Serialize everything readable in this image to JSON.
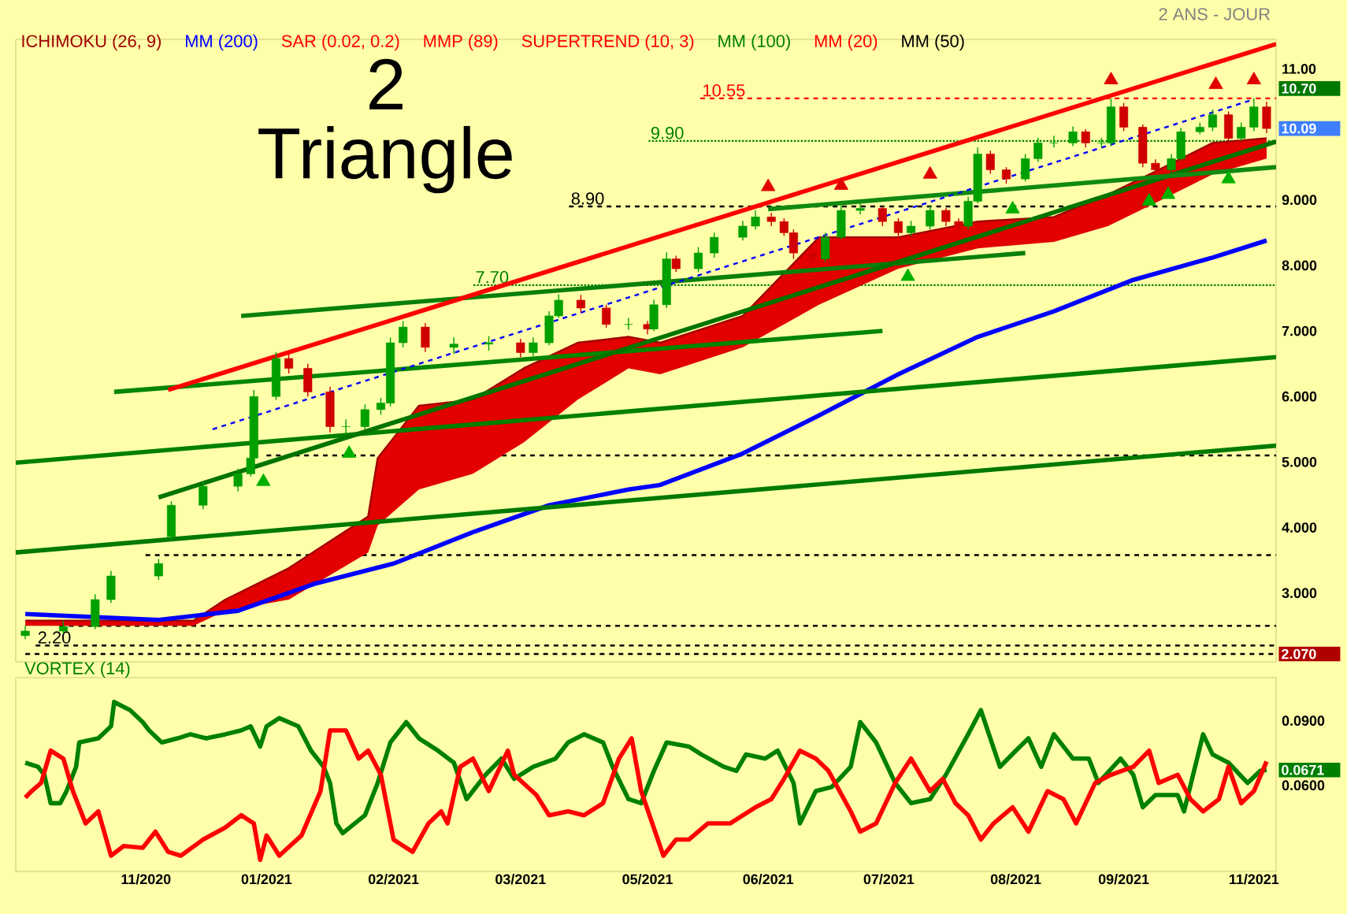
{
  "chart_data": [
    {
      "type": "candlestick",
      "title": "2 Triangle",
      "subtitle": "2 ANS - JOUR",
      "legend": "top left",
      "tick_labels": "y",
      "x": [
        "2020-10-18",
        "2020-10-30",
        "2020-11-09",
        "2020-11-14",
        "2020-11-29",
        "2020-12-03",
        "2020-12-13",
        "2020-12-24",
        "2020-12-28",
        "2020-12-29",
        "2021-01-05",
        "2021-01-09",
        "2021-01-15",
        "2021-01-22",
        "2021-01-27",
        "2021-02-02",
        "2021-02-07",
        "2021-02-10",
        "2021-02-14",
        "2021-02-21",
        "2021-03-02",
        "2021-03-13",
        "2021-03-23",
        "2021-03-27",
        "2021-04-01",
        "2021-04-04",
        "2021-04-11",
        "2021-04-19",
        "2021-04-26",
        "2021-05-02",
        "2021-05-04",
        "2021-05-08",
        "2021-05-11",
        "2021-05-18",
        "2021-05-23",
        "2021-06-01",
        "2021-06-05",
        "2021-06-10",
        "2021-06-14",
        "2021-06-17",
        "2021-06-23",
        "2021-06-27",
        "2021-07-02",
        "2021-07-08",
        "2021-07-15",
        "2021-07-20",
        "2021-07-24",
        "2021-07-30",
        "2021-08-04",
        "2021-08-08",
        "2021-08-11",
        "2021-08-14",
        "2021-08-18",
        "2021-08-23",
        "2021-08-29",
        "2021-09-02",
        "2021-09-07",
        "2021-09-13",
        "2021-09-17",
        "2021-09-22",
        "2021-09-25",
        "2021-09-29",
        "2021-10-05",
        "2021-10-09",
        "2021-10-14",
        "2021-10-17",
        "2021-10-23",
        "2021-10-27",
        "2021-11-01",
        "2021-11-05",
        "2021-11-09",
        "2021-11-13"
      ],
      "ohlc": [
        [
          2.35,
          2.5,
          2.3,
          2.42
        ],
        [
          2.42,
          2.58,
          2.38,
          2.49
        ],
        [
          2.49,
          2.98,
          2.45,
          2.9
        ],
        [
          2.9,
          3.34,
          2.85,
          3.26
        ],
        [
          3.26,
          3.52,
          3.2,
          3.45
        ],
        [
          3.86,
          4.4,
          3.8,
          4.34
        ],
        [
          4.34,
          4.7,
          4.28,
          4.63
        ],
        [
          4.63,
          4.9,
          4.55,
          4.82
        ],
        [
          4.82,
          5.12,
          4.78,
          5.06
        ],
        [
          5.06,
          6.1,
          5.0,
          6.0
        ],
        [
          6.0,
          6.68,
          5.95,
          6.58
        ],
        [
          6.58,
          6.65,
          6.35,
          6.43
        ],
        [
          6.43,
          6.5,
          6.0,
          6.07
        ],
        [
          6.07,
          6.15,
          5.45,
          5.54
        ],
        [
          5.54,
          5.65,
          5.42,
          5.54
        ],
        [
          5.54,
          5.88,
          5.5,
          5.8
        ],
        [
          5.8,
          5.98,
          5.72,
          5.9
        ],
        [
          5.9,
          6.9,
          5.85,
          6.82
        ],
        [
          6.82,
          7.15,
          6.75,
          7.06
        ],
        [
          7.06,
          7.12,
          6.68,
          6.75
        ],
        [
          6.75,
          6.9,
          6.65,
          6.8
        ],
        [
          6.8,
          6.92,
          6.7,
          6.82
        ],
        [
          6.82,
          6.88,
          6.6,
          6.67
        ],
        [
          6.67,
          6.9,
          6.62,
          6.82
        ],
        [
          6.82,
          7.3,
          6.78,
          7.23
        ],
        [
          7.23,
          7.56,
          7.2,
          7.47
        ],
        [
          7.47,
          7.55,
          7.28,
          7.35
        ],
        [
          7.35,
          7.4,
          7.05,
          7.1
        ],
        [
          7.1,
          7.2,
          7.02,
          7.1
        ],
        [
          7.1,
          7.15,
          6.95,
          7.03
        ],
        [
          7.03,
          7.48,
          7.0,
          7.4
        ],
        [
          7.4,
          8.2,
          7.35,
          8.1
        ],
        [
          8.1,
          8.15,
          7.9,
          7.95
        ],
        [
          7.95,
          8.28,
          7.9,
          8.19
        ],
        [
          8.19,
          8.5,
          8.12,
          8.43
        ],
        [
          8.43,
          8.68,
          8.38,
          8.6
        ],
        [
          8.6,
          8.84,
          8.55,
          8.74
        ],
        [
          8.74,
          8.8,
          8.6,
          8.67
        ],
        [
          8.67,
          8.72,
          8.45,
          8.5
        ],
        [
          8.5,
          8.55,
          8.1,
          8.19
        ],
        [
          8.19,
          8.25,
          8.02,
          8.1
        ],
        [
          8.1,
          8.5,
          8.05,
          8.43
        ],
        [
          8.43,
          8.92,
          8.4,
          8.84
        ],
        [
          8.84,
          8.95,
          8.78,
          8.87
        ],
        [
          8.87,
          8.9,
          8.6,
          8.67
        ],
        [
          8.67,
          8.72,
          8.42,
          8.5
        ],
        [
          8.5,
          8.68,
          8.45,
          8.6
        ],
        [
          8.6,
          8.92,
          8.55,
          8.84
        ],
        [
          8.84,
          8.88,
          8.6,
          8.67
        ],
        [
          8.67,
          8.72,
          8.52,
          8.6
        ],
        [
          8.6,
          9.05,
          8.55,
          8.98
        ],
        [
          8.98,
          9.8,
          8.95,
          9.7
        ],
        [
          9.7,
          9.75,
          9.4,
          9.46
        ],
        [
          9.46,
          9.5,
          9.25,
          9.32
        ],
        [
          9.32,
          9.7,
          9.28,
          9.63
        ],
        [
          9.63,
          9.95,
          9.58,
          9.87
        ],
        [
          9.87,
          9.98,
          9.8,
          9.87
        ],
        [
          9.87,
          10.12,
          9.82,
          10.04
        ],
        [
          10.04,
          10.08,
          9.8,
          9.87
        ],
        [
          9.87,
          9.95,
          9.8,
          9.87
        ],
        [
          9.87,
          10.55,
          9.82,
          10.42
        ],
        [
          10.42,
          10.48,
          10.05,
          10.11
        ],
        [
          10.11,
          10.15,
          9.5,
          9.56
        ],
        [
          9.56,
          9.62,
          9.4,
          9.46
        ],
        [
          9.46,
          9.7,
          9.42,
          9.63
        ],
        [
          9.63,
          10.1,
          9.6,
          10.04
        ],
        [
          10.04,
          10.18,
          10.0,
          10.11
        ],
        [
          10.11,
          10.38,
          10.05,
          10.3
        ],
        [
          10.3,
          10.35,
          9.9,
          9.94
        ],
        [
          9.94,
          10.18,
          9.9,
          10.11
        ],
        [
          10.11,
          10.55,
          10.05,
          10.42
        ],
        [
          10.42,
          10.5,
          10.02,
          10.09
        ]
      ],
      "xlim": [
        "2020-10-15",
        "2021-11-16"
      ],
      "ylim": [
        1.95,
        11.45
      ],
      "yticks": [
        {
          "value": 3,
          "label": "3.000"
        },
        {
          "value": 4,
          "label": "4.000"
        },
        {
          "value": 5,
          "label": "5.000"
        },
        {
          "value": 6,
          "label": "6.000"
        },
        {
          "value": 7,
          "label": "7.000"
        },
        {
          "value": 8,
          "label": "8.000"
        },
        {
          "value": 9,
          "label": "9.000"
        },
        {
          "value": 11,
          "label": "11.00"
        },
        {
          "value": 10.7,
          "label": "10.70"
        },
        {
          "value": 10.09,
          "label": "10.09"
        },
        {
          "value": 2.07,
          "label": "2.070"
        }
      ],
      "series": [
        {
          "name": "ICHIMOKU (26, 9)",
          "type": "line",
          "color": "#a00000",
          "upper": [
            2.58,
            2.58,
            2.9,
            3.38,
            4.17,
            5.06,
            5.86,
            5.95,
            6.43,
            6.82,
            6.91,
            6.82,
            7.23,
            8.43,
            8.43,
            8.67,
            8.74,
            9.08,
            9.46,
            9.87,
            9.94
          ],
          "x": [
            "2020-10-18",
            "2020-12-10",
            "2020-12-20",
            "2021-01-09",
            "2021-02-03",
            "2021-02-06",
            "2021-02-19",
            "2021-03-08",
            "2021-03-24",
            "2021-04-10",
            "2021-04-26",
            "2021-05-06",
            "2021-06-01",
            "2021-06-25",
            "2021-07-20",
            "2021-08-14",
            "2021-09-07",
            "2021-09-24",
            "2021-10-10",
            "2021-10-27",
            "2021-11-13"
          ],
          "values": [
            2.58,
            2.58,
            2.9,
            3.38,
            4.17,
            5.06,
            5.86,
            5.95,
            6.43,
            6.82,
            6.91,
            6.82,
            7.23,
            8.43,
            8.43,
            8.67,
            8.74,
            9.08,
            9.46,
            9.87,
            9.94
          ],
          "lower": [
            2.5,
            2.5,
            2.73,
            2.9,
            3.62,
            4.03,
            4.58,
            4.82,
            5.3,
            5.95,
            6.43,
            6.34,
            6.75,
            7.4,
            7.95,
            8.26,
            8.36,
            8.6,
            8.98,
            9.39,
            9.63
          ]
        },
        {
          "name": "MM (200)",
          "type": "line",
          "color": "#0000ff",
          "x": [
            "2020-10-18",
            "2020-11-29",
            "2020-12-24",
            "2021-01-17",
            "2021-02-11",
            "2021-03-08",
            "2021-04-01",
            "2021-04-26",
            "2021-05-06",
            "2021-06-01",
            "2021-06-25",
            "2021-07-20",
            "2021-08-14",
            "2021-09-07",
            "2021-10-02",
            "2021-10-27",
            "2021-11-13"
          ],
          "values": [
            2.68,
            2.59,
            2.73,
            3.14,
            3.45,
            3.93,
            4.34,
            4.58,
            4.65,
            5.13,
            5.71,
            6.34,
            6.91,
            7.3,
            7.78,
            8.12,
            8.38
          ]
        },
        {
          "type": "line",
          "color": "#008000",
          "x": [
            "2020-10-15",
            "2021-11-16"
          ],
          "values": [
            4.99,
            6.6
          ]
        },
        {
          "type": "line",
          "color": "#007a00",
          "x": [
            "2020-10-15",
            "2021-11-16"
          ],
          "values": [
            3.62,
            5.25
          ]
        },
        {
          "type": "line",
          "color": "#008600",
          "x": [
            "2020-11-15",
            "2021-07-15"
          ],
          "values": [
            6.07,
            7.0
          ]
        },
        {
          "type": "line",
          "color": "#0a800a",
          "x": [
            "2020-12-25",
            "2021-08-29"
          ],
          "values": [
            7.23,
            8.19
          ]
        },
        {
          "type": "line",
          "color": "#007400",
          "x": [
            "2020-11-29",
            "2021-11-16"
          ],
          "values": [
            4.46,
            9.89
          ]
        },
        {
          "type": "line",
          "color": "#108a10",
          "x": [
            "2021-06-09",
            "2021-11-16"
          ],
          "values": [
            8.86,
            9.5
          ]
        },
        {
          "type": "line",
          "color": "#ff0000",
          "x": [
            "2020-12-02",
            "2021-11-16"
          ],
          "values": [
            6.1,
            11.38
          ]
        },
        {
          "type": "line",
          "color": "#0000ff",
          "line_style": "dashed",
          "x": [
            "2020-12-16",
            "2021-11-08"
          ],
          "values": [
            5.5,
            10.52
          ]
        },
        {
          "type": "scatter",
          "marker": "triangle",
          "color": "#00b000",
          "x": [
            "2021-01-01",
            "2021-01-28",
            "2021-07-23",
            "2021-08-25",
            "2021-10-07",
            "2021-10-13",
            "2021-11-01"
          ],
          "values": [
            4.7,
            5.13,
            7.83,
            8.86,
            8.98,
            9.08,
            9.32
          ]
        },
        {
          "type": "scatter",
          "marker": "triangle",
          "color": "#e00000",
          "x": [
            "2021-06-09",
            "2021-07-02",
            "2021-07-30",
            "2021-09-25",
            "2021-10-28",
            "2021-11-09"
          ],
          "values": [
            9.2,
            9.22,
            9.39,
            10.83,
            10.76,
            10.83
          ]
        }
      ],
      "ref_lines": [
        {
          "axis": "y",
          "value": 7.7,
          "label": "7.70",
          "color": "#008000",
          "line_style": "dotted"
        },
        {
          "axis": "y",
          "value": 8.9,
          "label": "8.90",
          "color": "#000000",
          "line_style": "dashed"
        },
        {
          "axis": "y",
          "value": 9.9,
          "label": "9.90",
          "color": "#008000",
          "line_style": "dotted"
        },
        {
          "axis": "y",
          "value": 10.55,
          "label": "10.55",
          "color": "#ff0000",
          "line_style": "dashed"
        },
        {
          "axis": "y",
          "value": 2.2,
          "label": "2.20",
          "color": "#000000",
          "line_style": "dashed"
        },
        {
          "axis": "y",
          "value": 2.07,
          "color": "#000000",
          "line_style": "dashed"
        },
        {
          "axis": "y",
          "value": 2.5,
          "color": "#000000",
          "line_style": "dashed"
        },
        {
          "axis": "y",
          "value": 3.58,
          "color": "#000000",
          "line_style": "dashed"
        },
        {
          "axis": "y",
          "value": 5.1,
          "color": "#000000",
          "line_style": "dashed"
        }
      ],
      "annotations": [
        "SAR (0.02, 0.2)",
        "MMP (89)",
        "SUPERTREND (10, 3)",
        "MM (100)",
        "MM (20)",
        "MM (50)"
      ]
    },
    {
      "type": "line",
      "title": "VORTEX (14)",
      "xlim": [
        "2020-10-15",
        "2021-11-16"
      ],
      "ylim": [
        0.02,
        0.11
      ],
      "xticks": [
        {
          "value": "2020-11-25",
          "label": "11/2020"
        },
        {
          "value": "2021-01-02",
          "label": "01/2021"
        },
        {
          "value": "2021-02-11",
          "label": "02/2021"
        },
        {
          "value": "2021-03-23",
          "label": "03/2021"
        },
        {
          "value": "2021-05-02",
          "label": "05/2021"
        },
        {
          "value": "2021-06-09",
          "label": "06/2021"
        },
        {
          "value": "2021-07-17",
          "label": "07/2021"
        },
        {
          "value": "2021-08-26",
          "label": "08/2021"
        },
        {
          "value": "2021-09-29",
          "label": "09/2021"
        },
        {
          "value": "2021-11-09",
          "label": "11/2021"
        }
      ],
      "yticks": [
        {
          "value": 0.06,
          "label": "0.0600"
        },
        {
          "value": 0.09,
          "label": "0.0900"
        },
        {
          "value": 0.0671,
          "label": "0.0671"
        }
      ],
      "series": [
        {
          "color": "#008000",
          "x": [
            "2020-10-18",
            "2020-10-22",
            "2020-10-24",
            "2020-10-26",
            "2020-10-29",
            "2020-10-31",
            "2020-11-03",
            "2020-11-04",
            "2020-11-10",
            "2020-11-14",
            "2020-11-15",
            "2020-11-20",
            "2020-11-24",
            "2020-11-26",
            "2020-11-30",
            "2020-12-05",
            "2020-12-09",
            "2020-12-14",
            "2020-12-20",
            "2020-12-25",
            "2020-12-28",
            "2020-12-31",
            "2021-01-02",
            "2021-01-06",
            "2021-01-12",
            "2021-01-16",
            "2021-01-20",
            "2021-01-22",
            "2021-01-24",
            "2021-01-26",
            "2021-02-02",
            "2021-02-06",
            "2021-02-10",
            "2021-02-15",
            "2021-02-19",
            "2021-02-25",
            "2021-03-02",
            "2021-03-06",
            "2021-03-12",
            "2021-03-17",
            "2021-03-21",
            "2021-03-27",
            "2021-04-03",
            "2021-04-07",
            "2021-04-12",
            "2021-04-18",
            "2021-04-21",
            "2021-04-26",
            "2021-04-30",
            "2021-05-04",
            "2021-05-08",
            "2021-05-15",
            "2021-05-19",
            "2021-05-26",
            "2021-05-30",
            "2021-06-02",
            "2021-06-08",
            "2021-06-12",
            "2021-06-17",
            "2021-06-19",
            "2021-06-24",
            "2021-06-29",
            "2021-07-05",
            "2021-07-08",
            "2021-07-13",
            "2021-07-19",
            "2021-07-24",
            "2021-07-30",
            "2021-08-04",
            "2021-08-11",
            "2021-08-15",
            "2021-08-21",
            "2021-08-26",
            "2021-08-30",
            "2021-09-03",
            "2021-09-07",
            "2021-09-13",
            "2021-09-18",
            "2021-09-21",
            "2021-09-28",
            "2021-10-02",
            "2021-10-05",
            "2021-10-09",
            "2021-10-16",
            "2021-10-18",
            "2021-10-24",
            "2021-10-27",
            "2021-11-01",
            "2021-11-07",
            "2021-11-11",
            "2021-11-13"
          ],
          "values": [
            0.0705,
            0.0686,
            0.0649,
            0.0517,
            0.0517,
            0.0573,
            0.0686,
            0.0799,
            0.0818,
            0.0874,
            0.0987,
            0.0949,
            0.0893,
            0.0855,
            0.0799,
            0.0818,
            0.0837,
            0.0818,
            0.0837,
            0.0855,
            0.0874,
            0.078,
            0.0874,
            0.0912,
            0.0874,
            0.0761,
            0.0686,
            0.0611,
            0.0423,
            0.0378,
            0.0461,
            0.0611,
            0.0799,
            0.0893,
            0.0818,
            0.0761,
            0.0705,
            0.0536,
            0.0649,
            0.0724,
            0.063,
            0.0686,
            0.0724,
            0.0799,
            0.0837,
            0.0799,
            0.0686,
            0.0536,
            0.0517,
            0.0667,
            0.0799,
            0.078,
            0.0743,
            0.0686,
            0.0667,
            0.0743,
            0.0724,
            0.0761,
            0.0611,
            0.0423,
            0.0573,
            0.0592,
            0.0686,
            0.0893,
            0.0799,
            0.0611,
            0.0517,
            0.0536,
            0.0649,
            0.0837,
            0.0949,
            0.0686,
            0.0761,
            0.0818,
            0.0686,
            0.0837,
            0.0724,
            0.0724,
            0.0611,
            0.0724,
            0.0649,
            0.0498,
            0.0555,
            0.0555,
            0.0479,
            0.0837,
            0.0743,
            0.0705,
            0.0611,
            0.0667,
            0.0671
          ]
        },
        {
          "color": "#ff0000",
          "x": [
            "2020-10-18",
            "2020-10-20",
            "2020-10-23",
            "2020-10-26",
            "2020-10-30",
            "2020-11-02",
            "2020-11-06",
            "2020-11-10",
            "2020-11-14",
            "2020-11-18",
            "2020-11-24",
            "2020-11-28",
            "2020-12-02",
            "2020-12-06",
            "2020-12-13",
            "2020-12-20",
            "2020-12-25",
            "2020-12-29",
            "2020-12-31",
            "2021-01-02",
            "2021-01-06",
            "2021-01-13",
            "2021-01-19",
            "2021-01-22",
            "2021-01-27",
            "2021-01-31",
            "2021-02-03",
            "2021-02-07",
            "2021-02-11",
            "2021-02-17",
            "2021-02-22",
            "2021-02-26",
            "2021-02-28",
            "2021-03-04",
            "2021-03-08",
            "2021-03-13",
            "2021-03-19",
            "2021-03-21",
            "2021-03-28",
            "2021-04-01",
            "2021-04-07",
            "2021-04-12",
            "2021-04-18",
            "2021-04-23",
            "2021-04-27",
            "2021-04-30",
            "2021-05-07",
            "2021-05-11",
            "2021-05-15",
            "2021-05-21",
            "2021-05-28",
            "2021-06-05",
            "2021-06-10",
            "2021-06-14",
            "2021-06-19",
            "2021-06-24",
            "2021-06-28",
            "2021-07-05",
            "2021-07-08",
            "2021-07-13",
            "2021-07-19",
            "2021-07-24",
            "2021-07-30",
            "2021-08-03",
            "2021-08-07",
            "2021-08-11",
            "2021-08-15",
            "2021-08-19",
            "2021-08-25",
            "2021-08-30",
            "2021-09-05",
            "2021-09-10",
            "2021-09-14",
            "2021-09-20",
            "2021-09-25",
            "2021-10-02",
            "2021-10-07",
            "2021-10-10",
            "2021-10-16",
            "2021-10-20",
            "2021-10-24",
            "2021-10-29",
            "2021-11-01",
            "2021-11-05",
            "2021-11-09",
            "2021-11-13"
          ],
          "values": [
            0.0543,
            0.0573,
            0.0611,
            0.0761,
            0.0724,
            0.0573,
            0.0423,
            0.0479,
            0.0273,
            0.0318,
            0.031,
            0.0385,
            0.0291,
            0.0273,
            0.0348,
            0.0404,
            0.0461,
            0.0423,
            0.0254,
            0.0367,
            0.0273,
            0.0367,
            0.0573,
            0.0855,
            0.0855,
            0.0724,
            0.0761,
            0.0649,
            0.0348,
            0.0291,
            0.0423,
            0.0479,
            0.0423,
            0.0686,
            0.0724,
            0.0573,
            0.0761,
            0.0649,
            0.0555,
            0.0461,
            0.0479,
            0.0461,
            0.0517,
            0.0724,
            0.0818,
            0.0573,
            0.0273,
            0.0348,
            0.0348,
            0.0423,
            0.0423,
            0.0498,
            0.0536,
            0.063,
            0.0761,
            0.0724,
            0.0667,
            0.0479,
            0.0385,
            0.0423,
            0.0611,
            0.0724,
            0.0573,
            0.063,
            0.0517,
            0.0461,
            0.0348,
            0.0423,
            0.0498,
            0.0385,
            0.0573,
            0.0536,
            0.0423,
            0.0611,
            0.0649,
            0.0686,
            0.0761,
            0.0611,
            0.0649,
            0.0536,
            0.0479,
            0.0536,
            0.0686,
            0.0517,
            0.0573,
            0.0711
          ]
        }
      ]
    }
  ]
}
